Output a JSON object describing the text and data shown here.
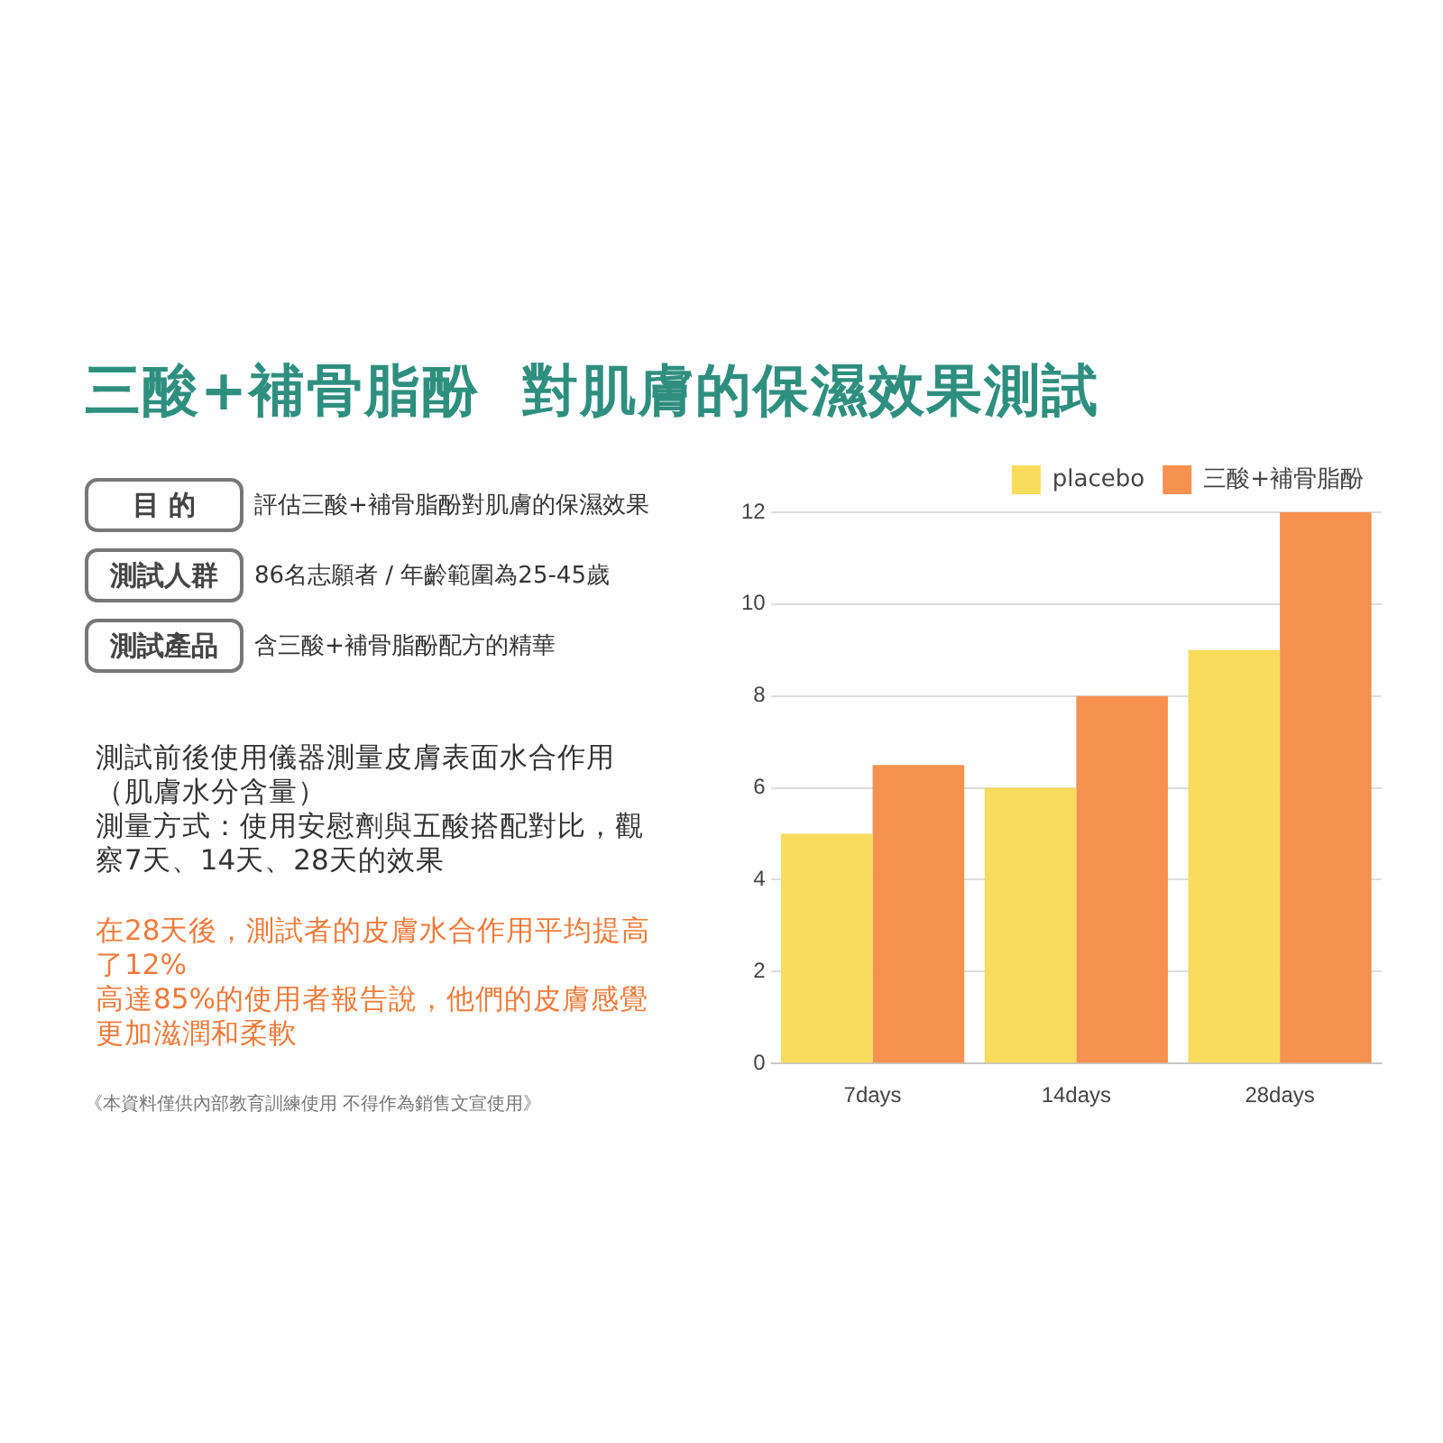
{
  "chart_data": {
    "type": "bar",
    "title": "三酸+補骨脂酚  對肌膚的保濕效果測試",
    "categories": [
      "7days",
      "14days",
      "28days"
    ],
    "series": [
      {
        "name": "placebo",
        "color": "#f9dc5c",
        "values": [
          5,
          6,
          9
        ]
      },
      {
        "name": "三酸+補骨脂酚",
        "color": "#f79150",
        "values": [
          6.5,
          8,
          12
        ]
      }
    ],
    "ylim": [
      0,
      12
    ],
    "yticks": [
      0,
      2,
      4,
      6,
      8,
      10,
      12
    ],
    "grid": "y",
    "legend": "top right",
    "annotations": [
      "目 的",
      "評估三酸+補骨脂酚對肌膚的保濕效果",
      "測試人群",
      "86名志願者 / 年齡範圍為25-45歲",
      "測試產品",
      "含三酸+補骨脂酚配方的精華",
      "測試前後使用儀器測量皮膚表面水合作用（肌膚水分含量）",
      "測量方式：使用安慰劑與五酸搭配對比，觀察7天、14天、28天的效果",
      "在28天後，測試者的皮膚水合作用平均提高了12%",
      "高達85%的使用者報告說，他們的皮膚感覺更加滋潤和柔軟",
      "《本資料僅供內部教育訓練使用  不得作為銷售文宣使用》"
    ]
  }
}
